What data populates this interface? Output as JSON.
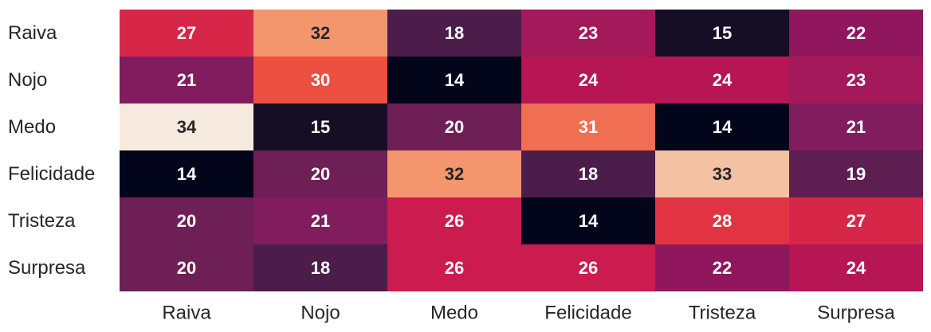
{
  "chart_data": {
    "type": "heatmap",
    "title": "",
    "xlabel": "",
    "ylabel": "",
    "x_categories": [
      "Raiva",
      "Nojo",
      "Medo",
      "Felicidade",
      "Tristeza",
      "Surpresa"
    ],
    "y_categories": [
      "Raiva",
      "Nojo",
      "Medo",
      "Felicidade",
      "Tristeza",
      "Surpresa"
    ],
    "values": [
      [
        27,
        32,
        18,
        23,
        15,
        22
      ],
      [
        21,
        30,
        14,
        24,
        24,
        23
      ],
      [
        34,
        15,
        20,
        31,
        14,
        21
      ],
      [
        14,
        20,
        32,
        18,
        33,
        19
      ],
      [
        20,
        21,
        26,
        14,
        28,
        27
      ],
      [
        20,
        18,
        26,
        26,
        22,
        24
      ]
    ],
    "colormap": "rocket",
    "value_range": [
      14,
      34
    ],
    "colorbar": false,
    "annotations": true,
    "grid": false
  }
}
